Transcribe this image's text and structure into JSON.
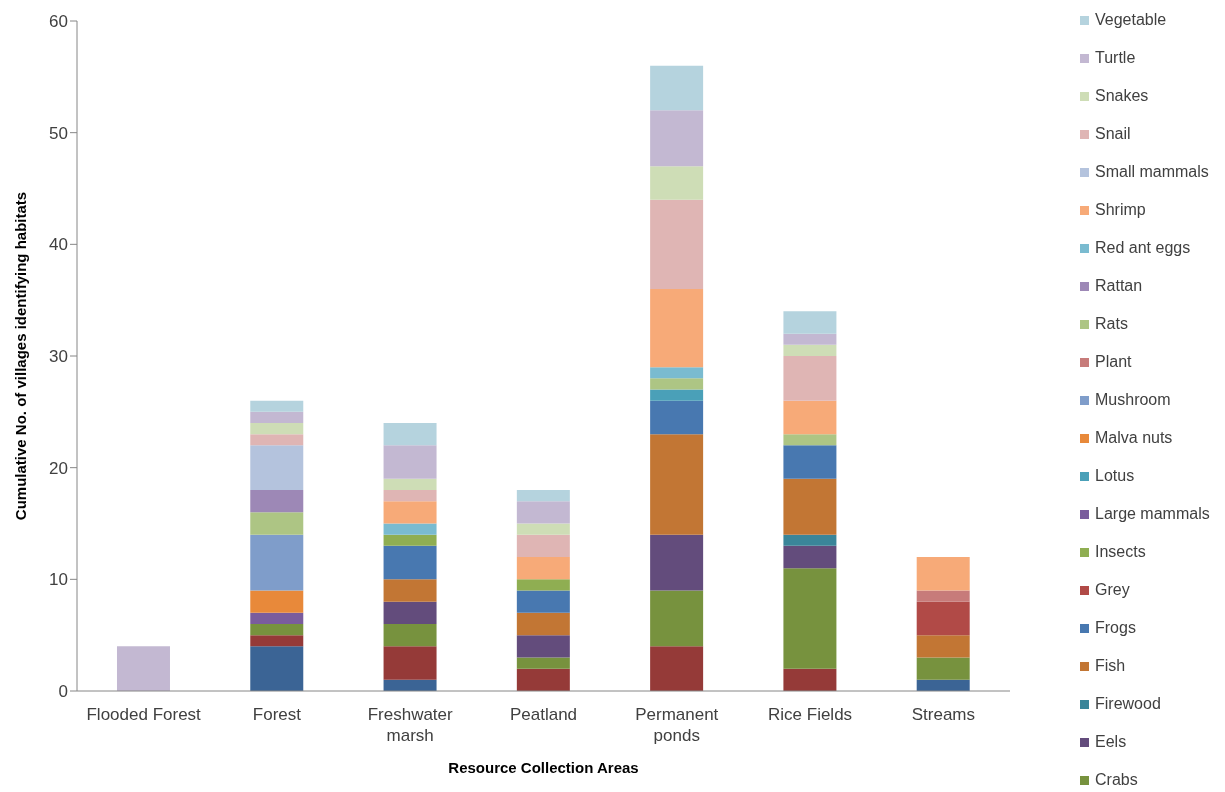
{
  "chart_data": {
    "type": "bar",
    "stacked": true,
    "xlabel": "Resource Collection Areas",
    "ylabel": "Cumulative No. of villages identifying habitats",
    "categories": [
      "Flooded Forest",
      "Forest",
      "Freshwater marsh",
      "Peatland",
      "Permanent ponds",
      "Rice Fields",
      "Streams"
    ],
    "ylim": [
      0,
      60
    ],
    "yticks": [
      0,
      10,
      20,
      30,
      40,
      50,
      60
    ],
    "legend": "right",
    "series": [
      {
        "color": "#3b6495",
        "values": [
          null,
          4,
          1,
          null,
          null,
          null,
          1
        ]
      },
      {
        "color": "#953a38",
        "values": [
          null,
          1,
          3,
          2,
          4,
          2,
          null
        ]
      },
      {
        "name": "Crabs",
        "color": "#77923e",
        "values": [
          null,
          1,
          2,
          1,
          5,
          9,
          2
        ]
      },
      {
        "name": "Eels",
        "color": "#634c7c",
        "values": [
          null,
          null,
          2,
          2,
          5,
          2,
          null
        ]
      },
      {
        "name": "Firewood",
        "color": "#3a8599",
        "values": [
          null,
          null,
          null,
          null,
          null,
          1,
          null
        ]
      },
      {
        "name": "Fish",
        "color": "#c27634",
        "values": [
          null,
          null,
          2,
          2,
          9,
          5,
          2
        ]
      },
      {
        "name": "Frogs",
        "color": "#4878b0",
        "values": [
          null,
          null,
          3,
          2,
          3,
          3,
          null
        ]
      },
      {
        "name": "Grey",
        "color": "#b14a47",
        "values": [
          null,
          null,
          null,
          null,
          null,
          null,
          3
        ]
      },
      {
        "name": "Insects",
        "color": "#8fae52",
        "values": [
          null,
          null,
          1,
          1,
          null,
          null,
          null
        ]
      },
      {
        "name": "Large mammals",
        "color": "#7a5c9d",
        "values": [
          null,
          1,
          null,
          null,
          null,
          null,
          null
        ]
      },
      {
        "name": "Lotus",
        "color": "#4aa0b8",
        "values": [
          null,
          null,
          null,
          null,
          1,
          null,
          null
        ]
      },
      {
        "name": "Malva nuts",
        "color": "#e8893a",
        "values": [
          null,
          2,
          null,
          null,
          null,
          null,
          null
        ]
      },
      {
        "name": "Mushroom",
        "color": "#7f9dca",
        "values": [
          null,
          5,
          null,
          null,
          null,
          null,
          null
        ]
      },
      {
        "name": "Plant",
        "color": "#c77b7a",
        "values": [
          null,
          null,
          null,
          null,
          null,
          null,
          1
        ]
      },
      {
        "name": "Rats",
        "color": "#adc584",
        "values": [
          null,
          2,
          null,
          null,
          1,
          1,
          null
        ]
      },
      {
        "name": "Rattan",
        "color": "#9d88b6",
        "values": [
          null,
          2,
          null,
          null,
          null,
          null,
          null
        ]
      },
      {
        "name": "Red ant eggs",
        "color": "#7abbd0",
        "values": [
          null,
          null,
          1,
          null,
          1,
          null,
          null
        ]
      },
      {
        "name": "Shrimp",
        "color": "#f7aa78",
        "values": [
          null,
          null,
          2,
          2,
          7,
          3,
          3
        ]
      },
      {
        "name": "Small mammals",
        "color": "#b4c3dd",
        "values": [
          null,
          4,
          null,
          null,
          null,
          null,
          null
        ]
      },
      {
        "name": "Snail",
        "color": "#dfb5b4",
        "values": [
          null,
          1,
          1,
          2,
          8,
          4,
          null
        ]
      },
      {
        "name": "Snakes",
        "color": "#ceddb6",
        "values": [
          null,
          1,
          1,
          1,
          3,
          1,
          null
        ]
      },
      {
        "name": "Turtle",
        "color": "#c3b8d2",
        "values": [
          4,
          1,
          3,
          2,
          5,
          1,
          null
        ]
      },
      {
        "name": "Vegetable",
        "color": "#b5d3de",
        "values": [
          null,
          1,
          2,
          1,
          4,
          2,
          null
        ]
      }
    ]
  }
}
